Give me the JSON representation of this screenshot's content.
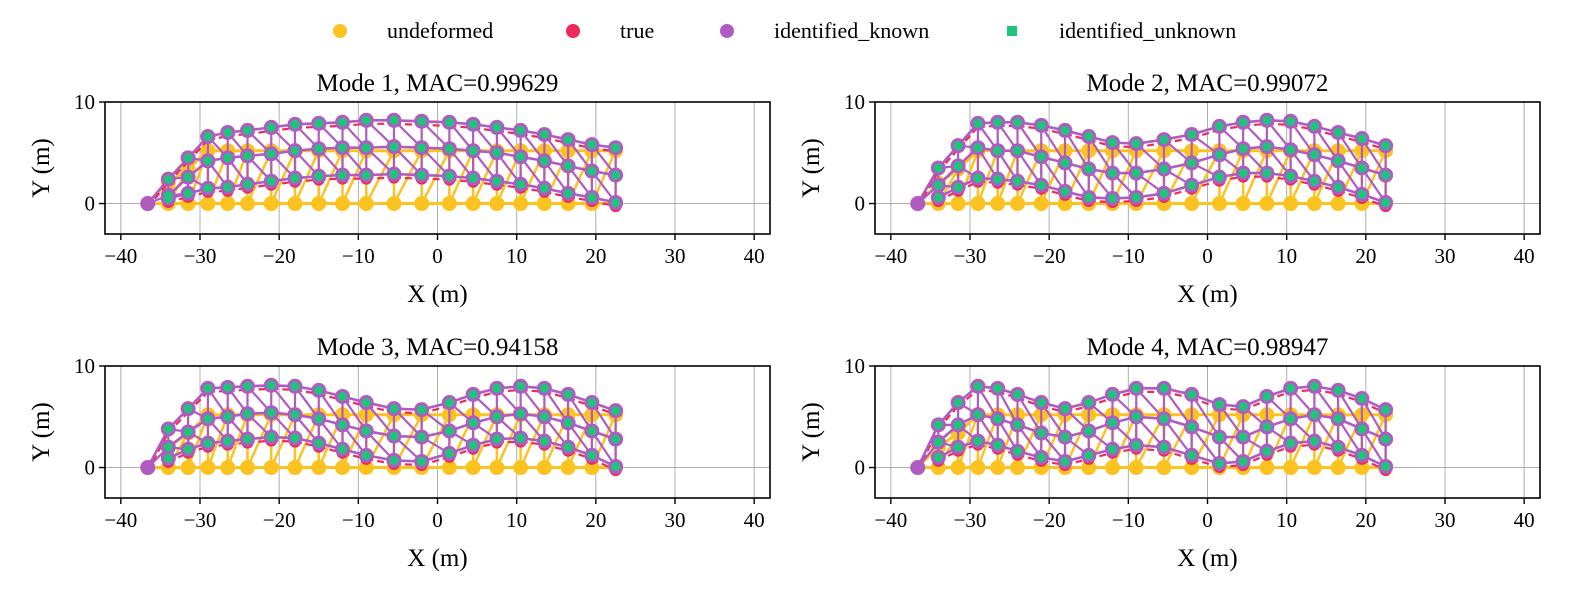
{
  "legend": {
    "items": [
      {
        "label": "undeformed",
        "color": "#fcc21f",
        "marker": "circle"
      },
      {
        "label": "true",
        "color": "#ee2a5b",
        "marker": "circle"
      },
      {
        "label": "identified_known",
        "color": "#b05bc2",
        "marker": "circle"
      },
      {
        "label": "identified_unknown",
        "color": "#1fc37c",
        "marker": "square"
      }
    ]
  },
  "chart_data": [
    {
      "type": "scatter",
      "title": "Mode 1, MAC=0.99629",
      "xlabel": "X (m)",
      "ylabel": "Y (m)",
      "xlim": [
        -42,
        42
      ],
      "ylim": [
        -3,
        10
      ],
      "xticks": [
        -40,
        -30,
        -20,
        -10,
        0,
        10,
        20,
        30,
        40
      ],
      "xtick_labels": [
        "−40",
        "−30",
        "−20",
        "−10",
        "0",
        "10",
        "20",
        "30",
        "40"
      ],
      "yticks": [
        0,
        10
      ],
      "ytick_labels": [
        "0",
        "10"
      ],
      "grid": true,
      "identified_top": [
        [
          -36.6,
          0
        ],
        [
          -34,
          2.4
        ],
        [
          -31.5,
          4.5
        ],
        [
          -29,
          6.6
        ],
        [
          -26.5,
          7.0
        ],
        [
          -24,
          7.2
        ],
        [
          -21,
          7.5
        ],
        [
          -18,
          7.8
        ],
        [
          -15,
          7.9
        ],
        [
          -12,
          8.0
        ],
        [
          -9,
          8.2
        ],
        [
          -5.5,
          8.2
        ],
        [
          -2,
          8.1
        ],
        [
          1.5,
          8.0
        ],
        [
          4.5,
          7.8
        ],
        [
          7.5,
          7.5
        ],
        [
          10.5,
          7.2
        ],
        [
          13.5,
          6.8
        ],
        [
          16.5,
          6.3
        ],
        [
          19.5,
          5.8
        ],
        [
          22.5,
          5.5
        ]
      ],
      "identified_mid": [
        [
          -34,
          0.8
        ],
        [
          -31.5,
          2.6
        ],
        [
          -29,
          4.2
        ],
        [
          -26.5,
          4.5
        ],
        [
          -24,
          4.7
        ],
        [
          -21,
          4.9
        ],
        [
          -18,
          5.2
        ],
        [
          -15,
          5.4
        ],
        [
          -12,
          5.5
        ],
        [
          -9,
          5.5
        ],
        [
          -5.5,
          5.6
        ],
        [
          -2,
          5.5
        ],
        [
          1.5,
          5.4
        ],
        [
          4.5,
          5.2
        ],
        [
          7.5,
          5.0
        ],
        [
          10.5,
          4.6
        ],
        [
          13.5,
          4.2
        ],
        [
          16.5,
          3.7
        ],
        [
          19.5,
          3.2
        ],
        [
          22.5,
          2.8
        ]
      ],
      "identified_bottom": [
        [
          -34,
          0.5
        ],
        [
          -31.5,
          1.0
        ],
        [
          -29,
          1.5
        ],
        [
          -26.5,
          1.6
        ],
        [
          -24,
          1.9
        ],
        [
          -21,
          2.2
        ],
        [
          -18,
          2.5
        ],
        [
          -15,
          2.7
        ],
        [
          -12,
          2.8
        ],
        [
          -9,
          2.8
        ],
        [
          -5.5,
          2.9
        ],
        [
          -2,
          2.8
        ],
        [
          1.5,
          2.7
        ],
        [
          4.5,
          2.5
        ],
        [
          7.5,
          2.2
        ],
        [
          10.5,
          1.9
        ],
        [
          13.5,
          1.5
        ],
        [
          16.5,
          1.0
        ],
        [
          19.5,
          0.6
        ],
        [
          22.5,
          0.1
        ]
      ]
    },
    {
      "type": "scatter",
      "title": "Mode 2, MAC=0.99072",
      "xlabel": "X (m)",
      "ylabel": "Y (m)",
      "xlim": [
        -42,
        42
      ],
      "ylim": [
        -3,
        10
      ],
      "xticks": [
        -40,
        -30,
        -20,
        -10,
        0,
        10,
        20,
        30,
        40
      ],
      "xtick_labels": [
        "−40",
        "−30",
        "−20",
        "−10",
        "0",
        "10",
        "20",
        "30",
        "40"
      ],
      "yticks": [
        0,
        10
      ],
      "ytick_labels": [
        "0",
        "10"
      ],
      "grid": true,
      "identified_top": [
        [
          -36.6,
          0
        ],
        [
          -34,
          3.5
        ],
        [
          -31.5,
          5.7
        ],
        [
          -29,
          7.9
        ],
        [
          -26.5,
          8.0
        ],
        [
          -24,
          8.0
        ],
        [
          -21,
          7.7
        ],
        [
          -18,
          7.2
        ],
        [
          -15,
          6.6
        ],
        [
          -12,
          6.0
        ],
        [
          -9,
          5.9
        ],
        [
          -5.5,
          6.3
        ],
        [
          -2,
          6.8
        ],
        [
          1.5,
          7.6
        ],
        [
          4.5,
          8.0
        ],
        [
          7.5,
          8.2
        ],
        [
          10.5,
          8.1
        ],
        [
          13.5,
          7.6
        ],
        [
          16.5,
          7.0
        ],
        [
          19.5,
          6.4
        ],
        [
          22.5,
          5.7
        ]
      ],
      "identified_mid": [
        [
          -34,
          1.8
        ],
        [
          -31.5,
          3.7
        ],
        [
          -29,
          5.5
        ],
        [
          -26.5,
          5.2
        ],
        [
          -24,
          5.2
        ],
        [
          -21,
          4.6
        ],
        [
          -18,
          4.0
        ],
        [
          -15,
          3.4
        ],
        [
          -12,
          3.0
        ],
        [
          -9,
          3.0
        ],
        [
          -5.5,
          3.4
        ],
        [
          -2,
          4.0
        ],
        [
          1.5,
          4.8
        ],
        [
          4.5,
          5.4
        ],
        [
          7.5,
          5.6
        ],
        [
          10.5,
          5.3
        ],
        [
          13.5,
          4.8
        ],
        [
          16.5,
          4.2
        ],
        [
          19.5,
          3.5
        ],
        [
          22.5,
          2.8
        ]
      ],
      "identified_bottom": [
        [
          -34,
          0.6
        ],
        [
          -31.5,
          1.6
        ],
        [
          -29,
          2.5
        ],
        [
          -26.5,
          2.4
        ],
        [
          -24,
          2.2
        ],
        [
          -21,
          1.8
        ],
        [
          -18,
          1.2
        ],
        [
          -15,
          0.6
        ],
        [
          -12,
          0.5
        ],
        [
          -9,
          0.6
        ],
        [
          -5.5,
          1.0
        ],
        [
          -2,
          1.8
        ],
        [
          1.5,
          2.6
        ],
        [
          4.5,
          3.0
        ],
        [
          7.5,
          3.0
        ],
        [
          10.5,
          2.7
        ],
        [
          13.5,
          2.2
        ],
        [
          16.5,
          1.6
        ],
        [
          19.5,
          0.9
        ],
        [
          22.5,
          0.1
        ]
      ]
    },
    {
      "type": "scatter",
      "title": "Mode 3, MAC=0.94158",
      "xlabel": "X (m)",
      "ylabel": "Y (m)",
      "xlim": [
        -42,
        42
      ],
      "ylim": [
        -3,
        10
      ],
      "xticks": [
        -40,
        -30,
        -20,
        -10,
        0,
        10,
        20,
        30,
        40
      ],
      "xtick_labels": [
        "−40",
        "−30",
        "−20",
        "−10",
        "0",
        "10",
        "20",
        "30",
        "40"
      ],
      "yticks": [
        0,
        10
      ],
      "ytick_labels": [
        "0",
        "10"
      ],
      "grid": true,
      "identified_top": [
        [
          -36.6,
          0
        ],
        [
          -34,
          3.8
        ],
        [
          -31.5,
          5.8
        ],
        [
          -29,
          7.8
        ],
        [
          -26.5,
          7.9
        ],
        [
          -24,
          8.0
        ],
        [
          -21,
          8.1
        ],
        [
          -18,
          8.0
        ],
        [
          -15,
          7.6
        ],
        [
          -12,
          7.0
        ],
        [
          -9,
          6.4
        ],
        [
          -5.5,
          5.8
        ],
        [
          -2,
          5.7
        ],
        [
          1.5,
          6.4
        ],
        [
          4.5,
          7.2
        ],
        [
          7.5,
          7.8
        ],
        [
          10.5,
          8.0
        ],
        [
          13.5,
          7.8
        ],
        [
          16.5,
          7.2
        ],
        [
          19.5,
          6.4
        ],
        [
          22.5,
          5.6
        ]
      ],
      "identified_mid": [
        [
          -34,
          2.0
        ],
        [
          -31.5,
          3.5
        ],
        [
          -29,
          4.8
        ],
        [
          -26.5,
          5.0
        ],
        [
          -24,
          5.3
        ],
        [
          -21,
          5.4
        ],
        [
          -18,
          5.2
        ],
        [
          -15,
          4.8
        ],
        [
          -12,
          4.2
        ],
        [
          -9,
          3.6
        ],
        [
          -5.5,
          3.1
        ],
        [
          -2,
          3.0
        ],
        [
          1.5,
          3.6
        ],
        [
          4.5,
          4.4
        ],
        [
          7.5,
          5.0
        ],
        [
          10.5,
          5.3
        ],
        [
          13.5,
          5.0
        ],
        [
          16.5,
          4.4
        ],
        [
          19.5,
          3.6
        ],
        [
          22.5,
          2.8
        ]
      ],
      "identified_bottom": [
        [
          -34,
          0.9
        ],
        [
          -31.5,
          1.8
        ],
        [
          -29,
          2.4
        ],
        [
          -26.5,
          2.6
        ],
        [
          -24,
          2.8
        ],
        [
          -21,
          3.0
        ],
        [
          -18,
          2.9
        ],
        [
          -15,
          2.4
        ],
        [
          -12,
          1.8
        ],
        [
          -9,
          1.2
        ],
        [
          -5.5,
          0.7
        ],
        [
          -2,
          0.6
        ],
        [
          1.5,
          1.4
        ],
        [
          4.5,
          2.2
        ],
        [
          7.5,
          2.8
        ],
        [
          10.5,
          2.9
        ],
        [
          13.5,
          2.6
        ],
        [
          16.5,
          2.0
        ],
        [
          19.5,
          1.2
        ],
        [
          22.5,
          0.1
        ]
      ]
    },
    {
      "type": "scatter",
      "title": "Mode 4, MAC=0.98947",
      "xlabel": "X (m)",
      "ylabel": "Y (m)",
      "xlim": [
        -42,
        42
      ],
      "ylim": [
        -3,
        10
      ],
      "xticks": [
        -40,
        -30,
        -20,
        -10,
        0,
        10,
        20,
        30,
        40
      ],
      "xtick_labels": [
        "−40",
        "−30",
        "−20",
        "−10",
        "0",
        "10",
        "20",
        "30",
        "40"
      ],
      "yticks": [
        0,
        10
      ],
      "ytick_labels": [
        "0",
        "10"
      ],
      "grid": true,
      "identified_top": [
        [
          -36.6,
          0
        ],
        [
          -34,
          4.2
        ],
        [
          -31.5,
          6.4
        ],
        [
          -29,
          8.0
        ],
        [
          -26.5,
          7.8
        ],
        [
          -24,
          7.2
        ],
        [
          -21,
          6.4
        ],
        [
          -18,
          5.8
        ],
        [
          -15,
          6.4
        ],
        [
          -12,
          7.2
        ],
        [
          -9,
          7.8
        ],
        [
          -5.5,
          7.8
        ],
        [
          -2,
          7.2
        ],
        [
          1.5,
          6.2
        ],
        [
          4.5,
          6.0
        ],
        [
          7.5,
          7.0
        ],
        [
          10.5,
          7.8
        ],
        [
          13.5,
          8.0
        ],
        [
          16.5,
          7.6
        ],
        [
          19.5,
          6.8
        ],
        [
          22.5,
          5.7
        ]
      ],
      "identified_mid": [
        [
          -34,
          2.5
        ],
        [
          -31.5,
          4.2
        ],
        [
          -29,
          5.2
        ],
        [
          -26.5,
          4.8
        ],
        [
          -24,
          4.2
        ],
        [
          -21,
          3.4
        ],
        [
          -18,
          3.0
        ],
        [
          -15,
          3.6
        ],
        [
          -12,
          4.4
        ],
        [
          -9,
          5.0
        ],
        [
          -5.5,
          4.8
        ],
        [
          -2,
          4.0
        ],
        [
          1.5,
          3.0
        ],
        [
          4.5,
          3.0
        ],
        [
          7.5,
          4.0
        ],
        [
          10.5,
          4.8
        ],
        [
          13.5,
          5.2
        ],
        [
          16.5,
          4.8
        ],
        [
          19.5,
          3.8
        ],
        [
          22.5,
          2.8
        ]
      ],
      "identified_bottom": [
        [
          -34,
          1.0
        ],
        [
          -31.5,
          2.0
        ],
        [
          -29,
          2.6
        ],
        [
          -26.5,
          2.2
        ],
        [
          -24,
          1.6
        ],
        [
          -21,
          1.0
        ],
        [
          -18,
          0.6
        ],
        [
          -15,
          1.2
        ],
        [
          -12,
          1.8
        ],
        [
          -9,
          2.2
        ],
        [
          -5.5,
          2.0
        ],
        [
          -2,
          1.2
        ],
        [
          1.5,
          0.4
        ],
        [
          4.5,
          0.6
        ],
        [
          7.5,
          1.6
        ],
        [
          10.5,
          2.4
        ],
        [
          13.5,
          2.6
        ],
        [
          16.5,
          2.0
        ],
        [
          19.5,
          1.2
        ],
        [
          22.5,
          0.1
        ]
      ]
    }
  ]
}
